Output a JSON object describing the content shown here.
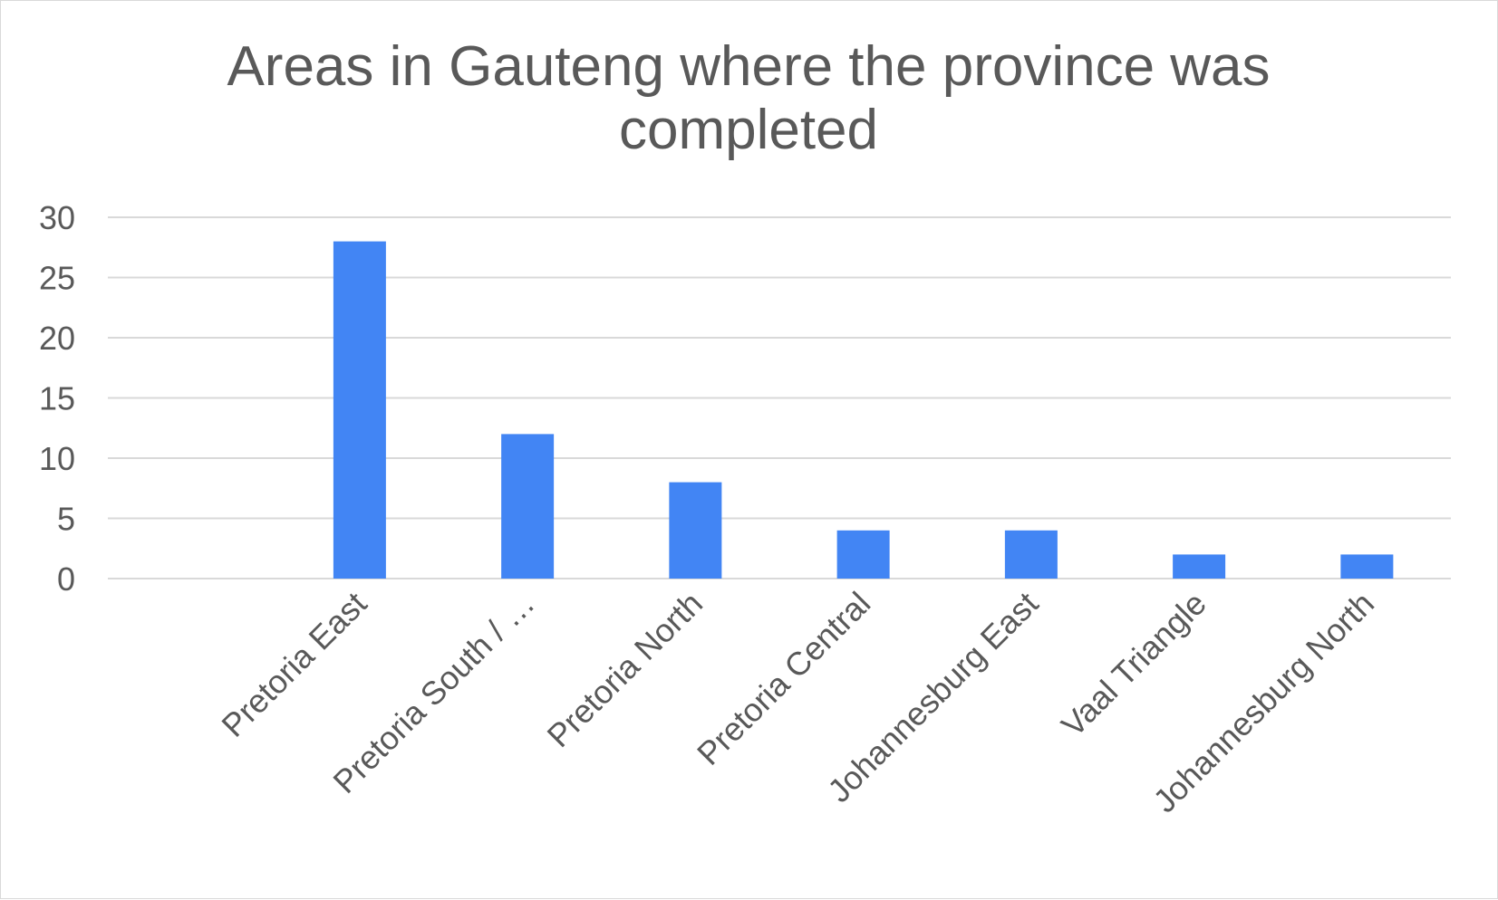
{
  "chart_data": {
    "type": "bar",
    "title": "Areas in Gauteng where the province was completed",
    "xlabel": "",
    "ylabel": "",
    "categories": [
      "",
      "Pretoria East",
      "Pretoria South / …",
      "Pretoria North",
      "Pretoria Central",
      "Johannesburg East",
      "Vaal Triangle",
      "Johannesburg North"
    ],
    "values": [
      0,
      28,
      12,
      8,
      4,
      4,
      2,
      2
    ],
    "ylim": [
      0,
      30
    ],
    "yticks": [
      "0",
      "5",
      "10",
      "15",
      "20",
      "25",
      "30"
    ],
    "grid": true,
    "legend": "none",
    "colors": {
      "bar": "#4285f4",
      "grid": "#d9d9d9",
      "text": "#595959"
    }
  }
}
